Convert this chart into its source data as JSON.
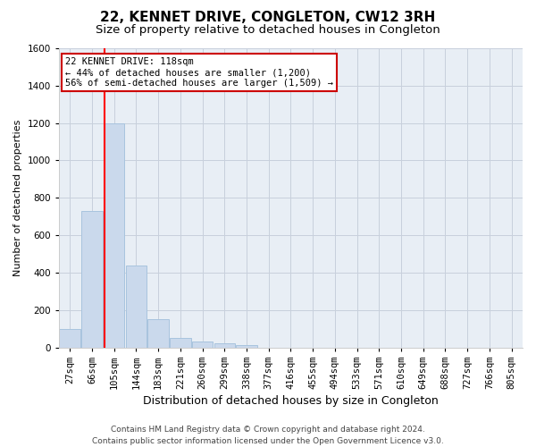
{
  "title": "22, KENNET DRIVE, CONGLETON, CW12 3RH",
  "subtitle": "Size of property relative to detached houses in Congleton",
  "xlabel": "Distribution of detached houses by size in Congleton",
  "ylabel": "Number of detached properties",
  "categories": [
    "27sqm",
    "66sqm",
    "105sqm",
    "144sqm",
    "183sqm",
    "221sqm",
    "260sqm",
    "299sqm",
    "338sqm",
    "377sqm",
    "416sqm",
    "455sqm",
    "494sqm",
    "533sqm",
    "571sqm",
    "610sqm",
    "649sqm",
    "688sqm",
    "727sqm",
    "766sqm",
    "805sqm"
  ],
  "values": [
    100,
    730,
    1200,
    440,
    150,
    50,
    30,
    20,
    10,
    0,
    0,
    0,
    0,
    0,
    0,
    0,
    0,
    0,
    0,
    0,
    0
  ],
  "bar_color": "#cad9ec",
  "bar_edge_color": "#a8c4de",
  "grid_color": "#c8d0dc",
  "plot_bg_color": "#e8eef5",
  "red_line_x": 1.57,
  "annotation_text": "22 KENNET DRIVE: 118sqm\n← 44% of detached houses are smaller (1,200)\n56% of semi-detached houses are larger (1,509) →",
  "annotation_box_facecolor": "#ffffff",
  "annotation_box_edgecolor": "#cc0000",
  "ylim": [
    0,
    1600
  ],
  "yticks": [
    0,
    200,
    400,
    600,
    800,
    1000,
    1200,
    1400,
    1600
  ],
  "footer_line1": "Contains HM Land Registry data © Crown copyright and database right 2024.",
  "footer_line2": "Contains public sector information licensed under the Open Government Licence v3.0.",
  "title_fontsize": 11,
  "subtitle_fontsize": 9.5,
  "ylabel_fontsize": 8,
  "xlabel_fontsize": 9,
  "tick_fontsize": 7.5,
  "annotation_fontsize": 7.5,
  "footer_fontsize": 6.5
}
